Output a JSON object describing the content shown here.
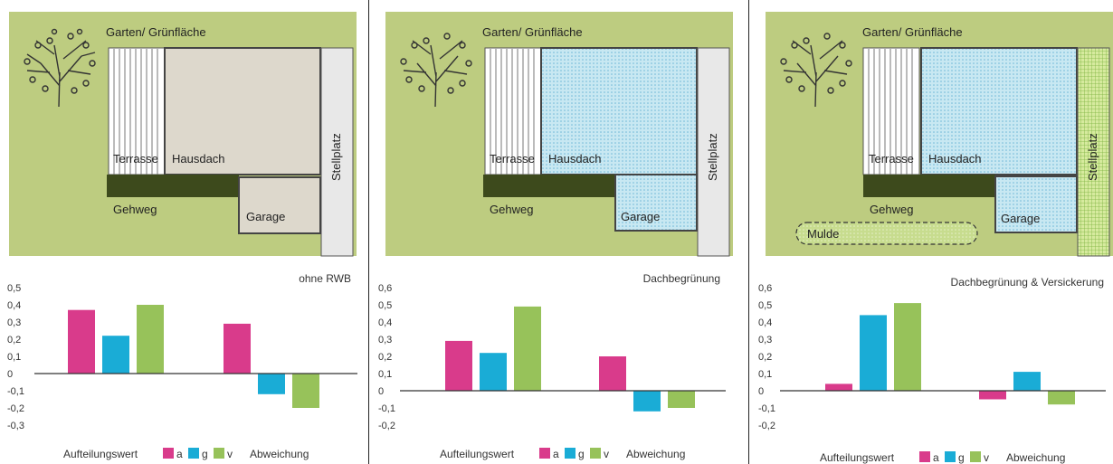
{
  "colors": {
    "garden": "#bdcc80",
    "house_plain": "#ddd8cc",
    "green_roof": "#c8e8f2",
    "a": "#d93b8b",
    "g": "#1aacd6",
    "v": "#97c25a"
  },
  "icons": [
    "tree-icon"
  ],
  "labels": {
    "garden": "Garten/ Grünfläche",
    "terrace": "Terrasse",
    "roof": "Hausdach",
    "parking": "Stellplatz",
    "walkway": "Gehweg",
    "garage": "Garage",
    "swale": "Mulde"
  },
  "legend": {
    "left": "Aufteilungswert",
    "a": "a",
    "g": "g",
    "v": "v",
    "right": "Abweichung"
  },
  "chart_data": [
    {
      "type": "bar",
      "title": "ohne RWB",
      "groups": [
        "Aufteilungswert",
        "Abweichung"
      ],
      "series": [
        {
          "name": "a",
          "values": [
            0.37,
            0.29
          ]
        },
        {
          "name": "g",
          "values": [
            0.22,
            -0.12
          ]
        },
        {
          "name": "v",
          "values": [
            0.4,
            -0.2
          ]
        }
      ],
      "ylim": [
        -0.3,
        0.5
      ],
      "yticks": [
        "0,5",
        "0,4",
        "0,3",
        "0,2",
        "0,1",
        "0",
        "-0,1",
        "-0,2",
        "-0,3"
      ]
    },
    {
      "type": "bar",
      "title": "Dachbegrünung",
      "groups": [
        "Aufteilungswert",
        "Abweichung"
      ],
      "series": [
        {
          "name": "a",
          "values": [
            0.29,
            0.2
          ]
        },
        {
          "name": "g",
          "values": [
            0.22,
            -0.12
          ]
        },
        {
          "name": "v",
          "values": [
            0.49,
            -0.1
          ]
        }
      ],
      "ylim": [
        -0.2,
        0.6
      ],
      "yticks": [
        "0,6",
        "0,5",
        "0,4",
        "0,3",
        "0,2",
        "0,1",
        "0",
        "-0,1",
        "-0,2"
      ]
    },
    {
      "type": "bar",
      "title": "Dachbegrünung & Versickerung",
      "groups": [
        "Aufteilungswert",
        "Abweichung"
      ],
      "series": [
        {
          "name": "a",
          "values": [
            0.04,
            -0.05
          ]
        },
        {
          "name": "g",
          "values": [
            0.44,
            0.11
          ]
        },
        {
          "name": "v",
          "values": [
            0.51,
            -0.08
          ]
        }
      ],
      "ylim": [
        -0.2,
        0.6
      ],
      "yticks": [
        "0,6",
        "0,5",
        "0,4",
        "0,3",
        "0,2",
        "0,1",
        "0",
        "-0,1",
        "-0,2"
      ]
    }
  ]
}
